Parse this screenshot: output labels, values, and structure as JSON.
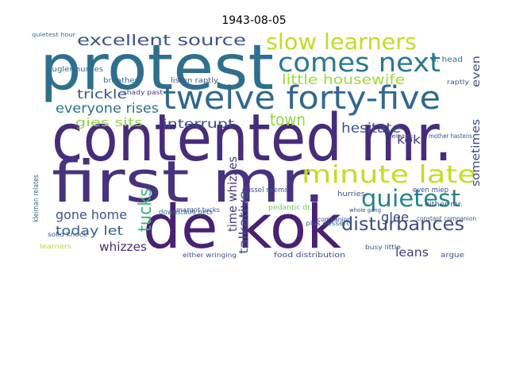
{
  "chart_data": {
    "type": "wordcloud",
    "title": "1943-08-05",
    "words": [
      {
        "text": "protest",
        "color": "#2f6f8e"
      },
      {
        "text": "contented mr.",
        "color": "#472c7a"
      },
      {
        "text": "first mr.",
        "color": "#46327e"
      },
      {
        "text": "de kok",
        "color": "#482173"
      },
      {
        "text": "twelve forty-five",
        "color": "#31688e"
      },
      {
        "text": "comes next",
        "color": "#2a788e"
      },
      {
        "text": "slow learners",
        "color": "#bddf26"
      },
      {
        "text": "minute late",
        "color": "#c2df23"
      },
      {
        "text": "quietest",
        "color": "#26828e"
      },
      {
        "text": "disturbances",
        "color": "#3e4c8a"
      },
      {
        "text": "excellent source",
        "color": "#3b528b"
      },
      {
        "text": "little housewife",
        "color": "#a0da39"
      },
      {
        "text": "everyone rises",
        "color": "#2c728e"
      },
      {
        "text": "town",
        "color": "#8fd744"
      },
      {
        "text": "hesitate",
        "color": "#3b528b"
      },
      {
        "text": "trickle",
        "color": "#38598c"
      },
      {
        "text": "interrupt",
        "color": "#3e4989"
      },
      {
        "text": "gies sits",
        "color": "#8fd744"
      },
      {
        "text": "kok",
        "color": "#443983"
      },
      {
        "text": "sometimes",
        "color": "#3f4889"
      },
      {
        "text": "even",
        "color": "#3f4889"
      },
      {
        "text": "tucks",
        "color": "#35b779"
      },
      {
        "text": "time whizzes",
        "color": "#443983"
      },
      {
        "text": "talkative",
        "color": "#3e4c8a"
      },
      {
        "text": "gone home",
        "color": "#3b528b"
      },
      {
        "text": "today let",
        "color": "#33638d"
      },
      {
        "text": "whizzes",
        "color": "#472d7b"
      },
      {
        "text": "leans",
        "color": "#453781"
      },
      {
        "text": "glee",
        "color": "#3e4c8a"
      },
      {
        "text": "d. head",
        "color": "#2c728e"
      },
      {
        "text": "dussel seems",
        "color": "#3b528b"
      },
      {
        "text": "downstairs gets",
        "color": "#2a788e"
      },
      {
        "text": "even miep",
        "color": "#3e4c8a"
      },
      {
        "text": "either mr.",
        "color": "#3b528b"
      },
      {
        "text": "food distribution",
        "color": "#3e4c8a"
      },
      {
        "text": "argue",
        "color": "#3b528b"
      },
      {
        "text": "breathes",
        "color": "#31688e"
      },
      {
        "text": "listen raptly",
        "color": "#3b528b"
      },
      {
        "text": "shady past",
        "color": "#453781"
      },
      {
        "text": "kugler hurries",
        "color": "#31688e"
      },
      {
        "text": "margot tucks",
        "color": "#3e4989"
      },
      {
        "text": "solid knock",
        "color": "#3b528b"
      },
      {
        "text": "pedantic dr.",
        "color": "#6ece58"
      },
      {
        "text": "plus dessert",
        "color": "#31688e"
      },
      {
        "text": "companion",
        "color": "#3e4c8a"
      },
      {
        "text": "constant companion",
        "color": "#3b528b"
      },
      {
        "text": "kleiman relates",
        "color": "#31688e"
      },
      {
        "text": "hurries",
        "color": "#3e4c8a"
      },
      {
        "text": "mother hastens",
        "color": "#3b528b"
      },
      {
        "text": "either wringing",
        "color": "#3e4c8a"
      },
      {
        "text": "busy little",
        "color": "#3b528b"
      },
      {
        "text": "learners",
        "color": "#b5de2b"
      },
      {
        "text": "quietest hour",
        "color": "#31688e"
      },
      {
        "text": "relates",
        "color": "#3e4c8a"
      },
      {
        "text": "raptly",
        "color": "#3b528b"
      },
      {
        "text": "whole gang",
        "color": "#3e4c8a"
      }
    ]
  }
}
